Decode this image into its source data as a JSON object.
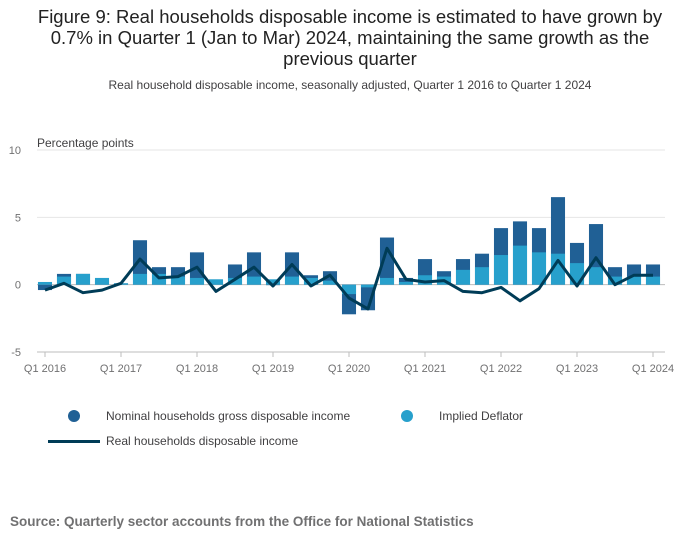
{
  "title": "Figure 9: Real households disposable income is estimated to have grown by 0.7% in Quarter 1 (Jan to Mar) 2024, maintaining the same growth as the previous quarter",
  "subtitle": "Real household disposable income, seasonally adjusted, Quarter 1 2016 to Quarter 1 2024",
  "source": "Source: Quarterly sector accounts from the Office for National Statistics",
  "chart_data": {
    "type": "bar",
    "ylabel": "Percentage points",
    "ylim": [
      -5,
      10
    ],
    "yticks": [
      -5,
      0,
      5,
      10
    ],
    "grid": true,
    "legend_position": "bottom-left",
    "colors": {
      "nominal": "#206095",
      "deflator": "#27a0cc",
      "real": "#003c57"
    },
    "categories": [
      "Q1 2016",
      "Q2 2016",
      "Q3 2016",
      "Q4 2016",
      "Q1 2017",
      "Q2 2017",
      "Q3 2017",
      "Q4 2017",
      "Q1 2018",
      "Q2 2018",
      "Q3 2018",
      "Q4 2018",
      "Q1 2019",
      "Q2 2019",
      "Q3 2019",
      "Q4 2019",
      "Q1 2020",
      "Q2 2020",
      "Q3 2020",
      "Q4 2020",
      "Q1 2021",
      "Q2 2021",
      "Q3 2021",
      "Q4 2021",
      "Q1 2022",
      "Q2 2022",
      "Q3 2022",
      "Q4 2022",
      "Q1 2023",
      "Q2 2023",
      "Q3 2023",
      "Q4 2023",
      "Q1 2024"
    ],
    "xtick_labels": [
      "Q1 2016",
      "Q1 2017",
      "Q1 2018",
      "Q1 2019",
      "Q1 2020",
      "Q1 2021",
      "Q1 2022",
      "Q1 2023",
      "Q1 2024"
    ],
    "series": [
      {
        "name": "Nominal households gross disposable income",
        "kind": "bar",
        "values": [
          -0.4,
          0.8,
          0.8,
          0.3,
          0.1,
          3.3,
          1.3,
          1.3,
          2.4,
          0.2,
          1.5,
          2.4,
          0.0,
          2.4,
          0.7,
          1.0,
          -2.2,
          -1.9,
          3.5,
          0.5,
          1.9,
          1.0,
          1.9,
          2.3,
          4.2,
          4.7,
          4.2,
          6.5,
          3.1,
          4.5,
          1.3,
          1.5,
          1.5
        ]
      },
      {
        "name": "Implied Deflator",
        "kind": "bar",
        "values": [
          0.2,
          0.6,
          0.8,
          0.5,
          0.1,
          0.8,
          0.8,
          0.6,
          0.5,
          0.4,
          0.5,
          0.6,
          0.4,
          0.6,
          0.5,
          0.3,
          -0.7,
          -0.2,
          0.5,
          0.2,
          0.7,
          0.6,
          1.1,
          1.3,
          2.2,
          2.9,
          2.4,
          2.3,
          1.6,
          1.3,
          0.6,
          0.6,
          0.6
        ]
      },
      {
        "name": "Real households disposable income",
        "kind": "line",
        "values": [
          -0.4,
          0.1,
          -0.6,
          -0.4,
          0.1,
          1.9,
          0.5,
          0.6,
          1.3,
          -0.5,
          0.4,
          1.3,
          -0.1,
          1.5,
          -0.1,
          0.7,
          -1.0,
          -1.8,
          2.7,
          0.4,
          0.2,
          0.3,
          -0.5,
          -0.6,
          -0.2,
          -1.2,
          -0.3,
          1.8,
          -0.1,
          2.0,
          0.0,
          0.7,
          0.7
        ]
      }
    ]
  }
}
